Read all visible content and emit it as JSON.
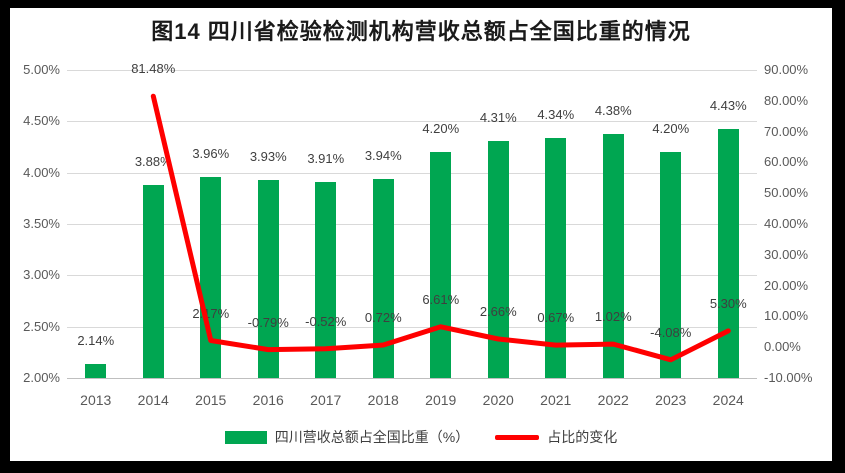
{
  "title": "图14  四川省检验检测机构营收总额占全国比重的情况",
  "colors": {
    "frame": "#000000",
    "background": "#FFFFFF",
    "title_text": "#1A1A1A",
    "bar": "#00A651",
    "line": "#FF0000",
    "gridline": "#D9D9D9",
    "axis_line": "#BFBFBF",
    "tick_text": "#595959",
    "label_text": "#3F3F3F"
  },
  "chart_data": {
    "type": "combo-bar-line",
    "title": "图14  四川省检验检测机构营收总额占全国比重的情况",
    "categories": [
      "2013",
      "2014",
      "2015",
      "2016",
      "2017",
      "2018",
      "2019",
      "2020",
      "2021",
      "2022",
      "2023",
      "2024"
    ],
    "series": [
      {
        "name": "四川营收总额占全国比重（%）",
        "type": "bar",
        "axis": "left",
        "values": [
          2.14,
          3.88,
          3.96,
          3.93,
          3.91,
          3.94,
          4.2,
          4.31,
          4.34,
          4.38,
          4.2,
          4.43
        ],
        "labels": [
          "2.14%",
          "3.88%",
          "3.96%",
          "3.93%",
          "3.91%",
          "3.94%",
          "4.20%",
          "4.31%",
          "4.34%",
          "4.38%",
          "4.20%",
          "4.43%"
        ]
      },
      {
        "name": "占比的变化",
        "type": "line",
        "axis": "right",
        "values": [
          null,
          81.48,
          2.17,
          -0.79,
          -0.52,
          0.72,
          6.61,
          2.66,
          0.67,
          1.02,
          -4.08,
          5.3
        ],
        "labels": [
          null,
          "81.48%",
          "2.17%",
          "-0.79%",
          "-0.52%",
          "0.72%",
          "6.61%",
          "2.66%",
          "0.67%",
          "1.02%",
          "-4.08%",
          "5.30%"
        ]
      }
    ],
    "left_axis": {
      "min": 2.0,
      "max": 5.0,
      "tick_labels": [
        "5.00%",
        "4.50%",
        "4.00%",
        "3.50%",
        "3.00%",
        "2.50%",
        "2.00%"
      ]
    },
    "right_axis": {
      "min": -10,
      "max": 90,
      "tick_labels": [
        "90.00%",
        "80.00%",
        "70.00%",
        "60.00%",
        "50.00%",
        "40.00%",
        "30.00%",
        "20.00%",
        "10.00%",
        "0.00%",
        "-10.00%"
      ]
    },
    "grid": true,
    "legend_position": "bottom",
    "legend": [
      {
        "label": "四川营收总额占全国比重（%）",
        "swatch": "bar"
      },
      {
        "label": "占比的变化",
        "swatch": "line"
      }
    ]
  }
}
